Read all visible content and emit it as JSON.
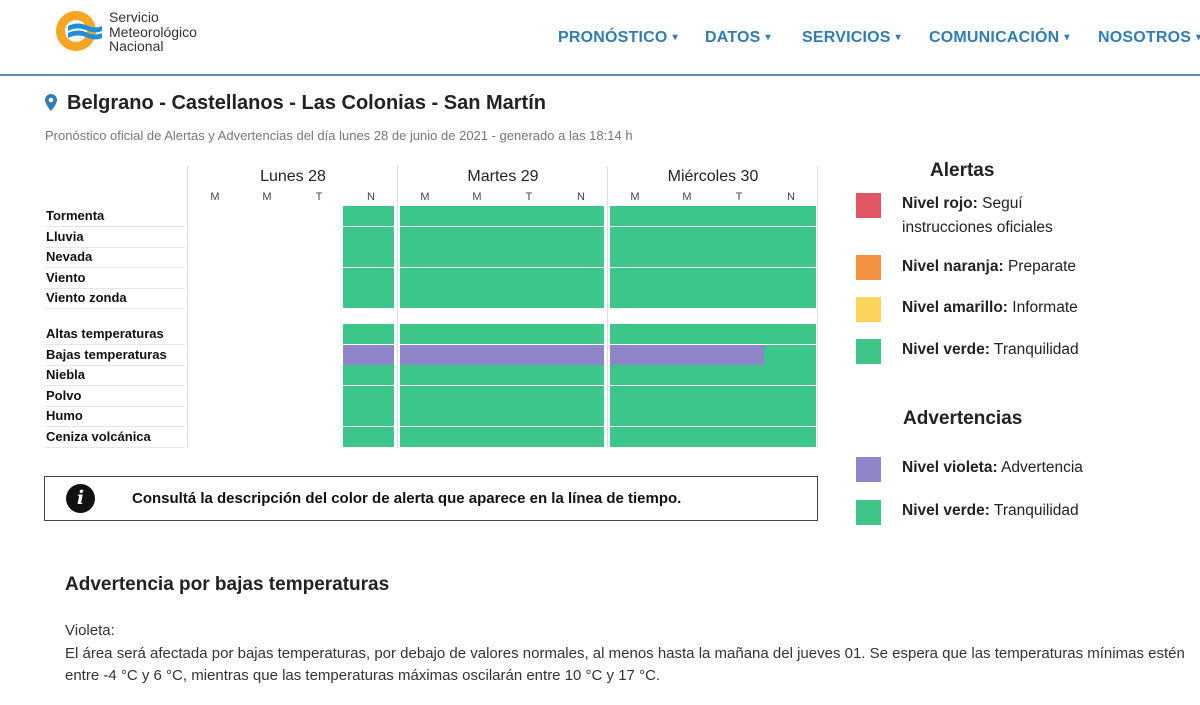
{
  "brand": {
    "line1": "Servicio",
    "line2": "Meteorológico",
    "line3": "Nacional",
    "colors": {
      "orange": "#f5a623",
      "blue": "#1f8fd6"
    }
  },
  "nav": [
    {
      "label": "PRONÓSTICO",
      "caret": "▾"
    },
    {
      "label": "DATOS",
      "caret": "▾"
    },
    {
      "label": "SERVICIOS",
      "caret": "▾"
    },
    {
      "label": "COMUNICACIÓN",
      "caret": "▾"
    },
    {
      "label": "NOSOTROS",
      "caret": "▾"
    }
  ],
  "page": {
    "title": "Belgrano - Castellanos - Las Colonias - San Martín",
    "subtitle": "Pronóstico oficial de Alertas y Advertencias del día lunes 28 de junio de 2021 - generado a las 18:14 h"
  },
  "timeline": {
    "days": [
      {
        "label": "Lunes 28",
        "periods": [
          "M",
          "M",
          "T",
          "N"
        ]
      },
      {
        "label": "Martes 29",
        "periods": [
          "M",
          "M",
          "T",
          "N"
        ]
      },
      {
        "label": "Miércoles 30",
        "periods": [
          "M",
          "M",
          "T",
          "N"
        ]
      }
    ],
    "alert_rows": [
      {
        "label": "Tormenta",
        "level": "verde"
      },
      {
        "label": "Lluvia",
        "level": "verde"
      },
      {
        "label": "Nevada",
        "level": "verde"
      },
      {
        "label": "Viento",
        "level": "verde"
      },
      {
        "label": "Viento zonda",
        "level": "verde"
      }
    ],
    "warning_rows": [
      {
        "label": "Altas temperaturas",
        "level": "verde"
      },
      {
        "label": "Bajas temperaturas",
        "level": "violeta"
      },
      {
        "label": "Niebla",
        "level": "verde"
      },
      {
        "label": "Polvo",
        "level": "verde"
      },
      {
        "label": "Humo",
        "level": "verde"
      },
      {
        "label": "Ceniza volcánica",
        "level": "verde"
      }
    ],
    "colors": {
      "verde": "#3cc68a",
      "violeta": "#8e85c8"
    }
  },
  "info": {
    "icon": "info-icon",
    "glyph": "i",
    "text": "Consultá la descripción del color de alerta que aparece en la línea de tiempo."
  },
  "legend": {
    "alerts_title": "Alertas",
    "alerts": [
      {
        "name": "Nivel rojo:",
        "desc": "Seguí instrucciones oficiales",
        "color": "#e05662"
      },
      {
        "name": "Nivel naranja:",
        "desc": "Preparate",
        "color": "#f39342"
      },
      {
        "name": "Nivel amarillo:",
        "desc": "Informate",
        "color": "#fbd45c"
      },
      {
        "name": "Nivel verde:",
        "desc": "Tranquilidad",
        "color": "#3cc68a"
      }
    ],
    "warnings_title": "Advertencias",
    "warnings": [
      {
        "name": "Nivel violeta:",
        "desc": "Advertencia",
        "color": "#8e85c8"
      },
      {
        "name": "Nivel verde:",
        "desc": "Tranquilidad",
        "color": "#3cc68a"
      }
    ]
  },
  "description": {
    "title": "Advertencia por bajas temperaturas",
    "label": "Violeta:",
    "body": "El área será afectada por bajas temperaturas, por debajo de valores normales, al menos hasta la mañana del jueves 01. Se espera que las temperaturas mínimas estén entre -4 °C y 6 °C, mientras que las temperaturas máximas oscilarán entre 10 °C y 17 °C."
  }
}
